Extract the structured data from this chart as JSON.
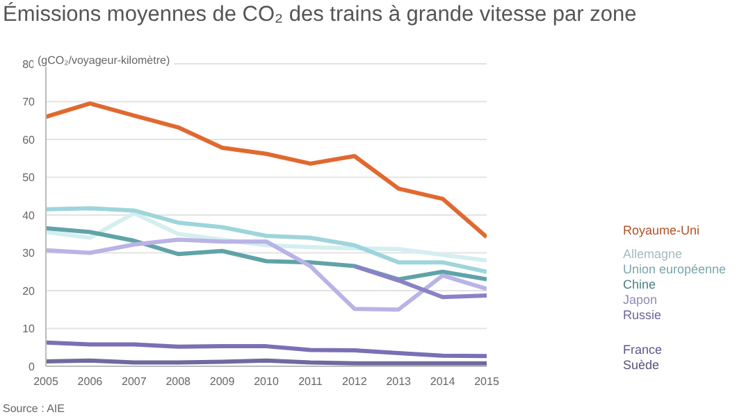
{
  "chart_data": {
    "type": "line",
    "title": "Émissions moyennes de CO₂ des trains à grande vitesse par zone",
    "ylabel": "(gCO₂/voyageur-kilomètre)",
    "annotations": [
      "Source : AIE"
    ],
    "x": [
      2005,
      2006,
      2007,
      2008,
      2009,
      2010,
      2011,
      2012,
      2013,
      2014,
      2015
    ],
    "xlim": [
      2005,
      2015
    ],
    "xticks": [
      2005,
      2006,
      2007,
      2008,
      2009,
      2010,
      2011,
      2012,
      2013,
      2014,
      2015
    ],
    "ylim": [
      0,
      80
    ],
    "yticks": [
      0,
      10,
      20,
      30,
      40,
      50,
      60,
      70,
      80
    ],
    "grid": "y",
    "legend": "right",
    "marker": "none",
    "line_style": "solid",
    "series": [
      {
        "name": "Royaume-Uni",
        "color": "#e0692f",
        "values": [
          66,
          69.5,
          66.3,
          63.2,
          57.8,
          56.2,
          53.6,
          55.6,
          47,
          44.3,
          34.2
        ]
      },
      {
        "name": "Allemagne",
        "color": "#d5eef0",
        "values": [
          35.5,
          34,
          40.5,
          35,
          33.5,
          32,
          31.5,
          31.2,
          31,
          29.5,
          28
        ]
      },
      {
        "name": "Union européenne",
        "color": "#9dd5db",
        "values": [
          41.5,
          41.8,
          41.2,
          38,
          36.8,
          34.5,
          34,
          32,
          27.5,
          27.5,
          25
        ]
      },
      {
        "name": "Chine",
        "color": "#5fa3a8",
        "values": [
          36.5,
          35.5,
          33.2,
          29.7,
          30.5,
          27.8,
          27.5,
          26.5,
          23,
          25,
          23
        ]
      },
      {
        "name": "Japon",
        "color": "#b9b3e6",
        "values": [
          30.7,
          30,
          32.2,
          33.5,
          33,
          33,
          26.5,
          15.2,
          15,
          24,
          20.5
        ]
      },
      {
        "name": "Russie",
        "color": "#8a82c4",
        "values": [
          null,
          null,
          null,
          null,
          null,
          null,
          null,
          26.5,
          22.7,
          18.3,
          18.7
        ]
      },
      {
        "name": "France",
        "color": "#7a70b5",
        "values": [
          6.3,
          5.8,
          5.8,
          5.2,
          5.3,
          5.3,
          4.3,
          4.2,
          3.5,
          2.8,
          2.7
        ]
      },
      {
        "name": "Suède",
        "color": "#6e6a9e",
        "values": [
          1.3,
          1.5,
          1,
          1,
          1.2,
          1.5,
          1,
          0.8,
          0.8,
          0.8,
          0.8
        ]
      }
    ]
  }
}
